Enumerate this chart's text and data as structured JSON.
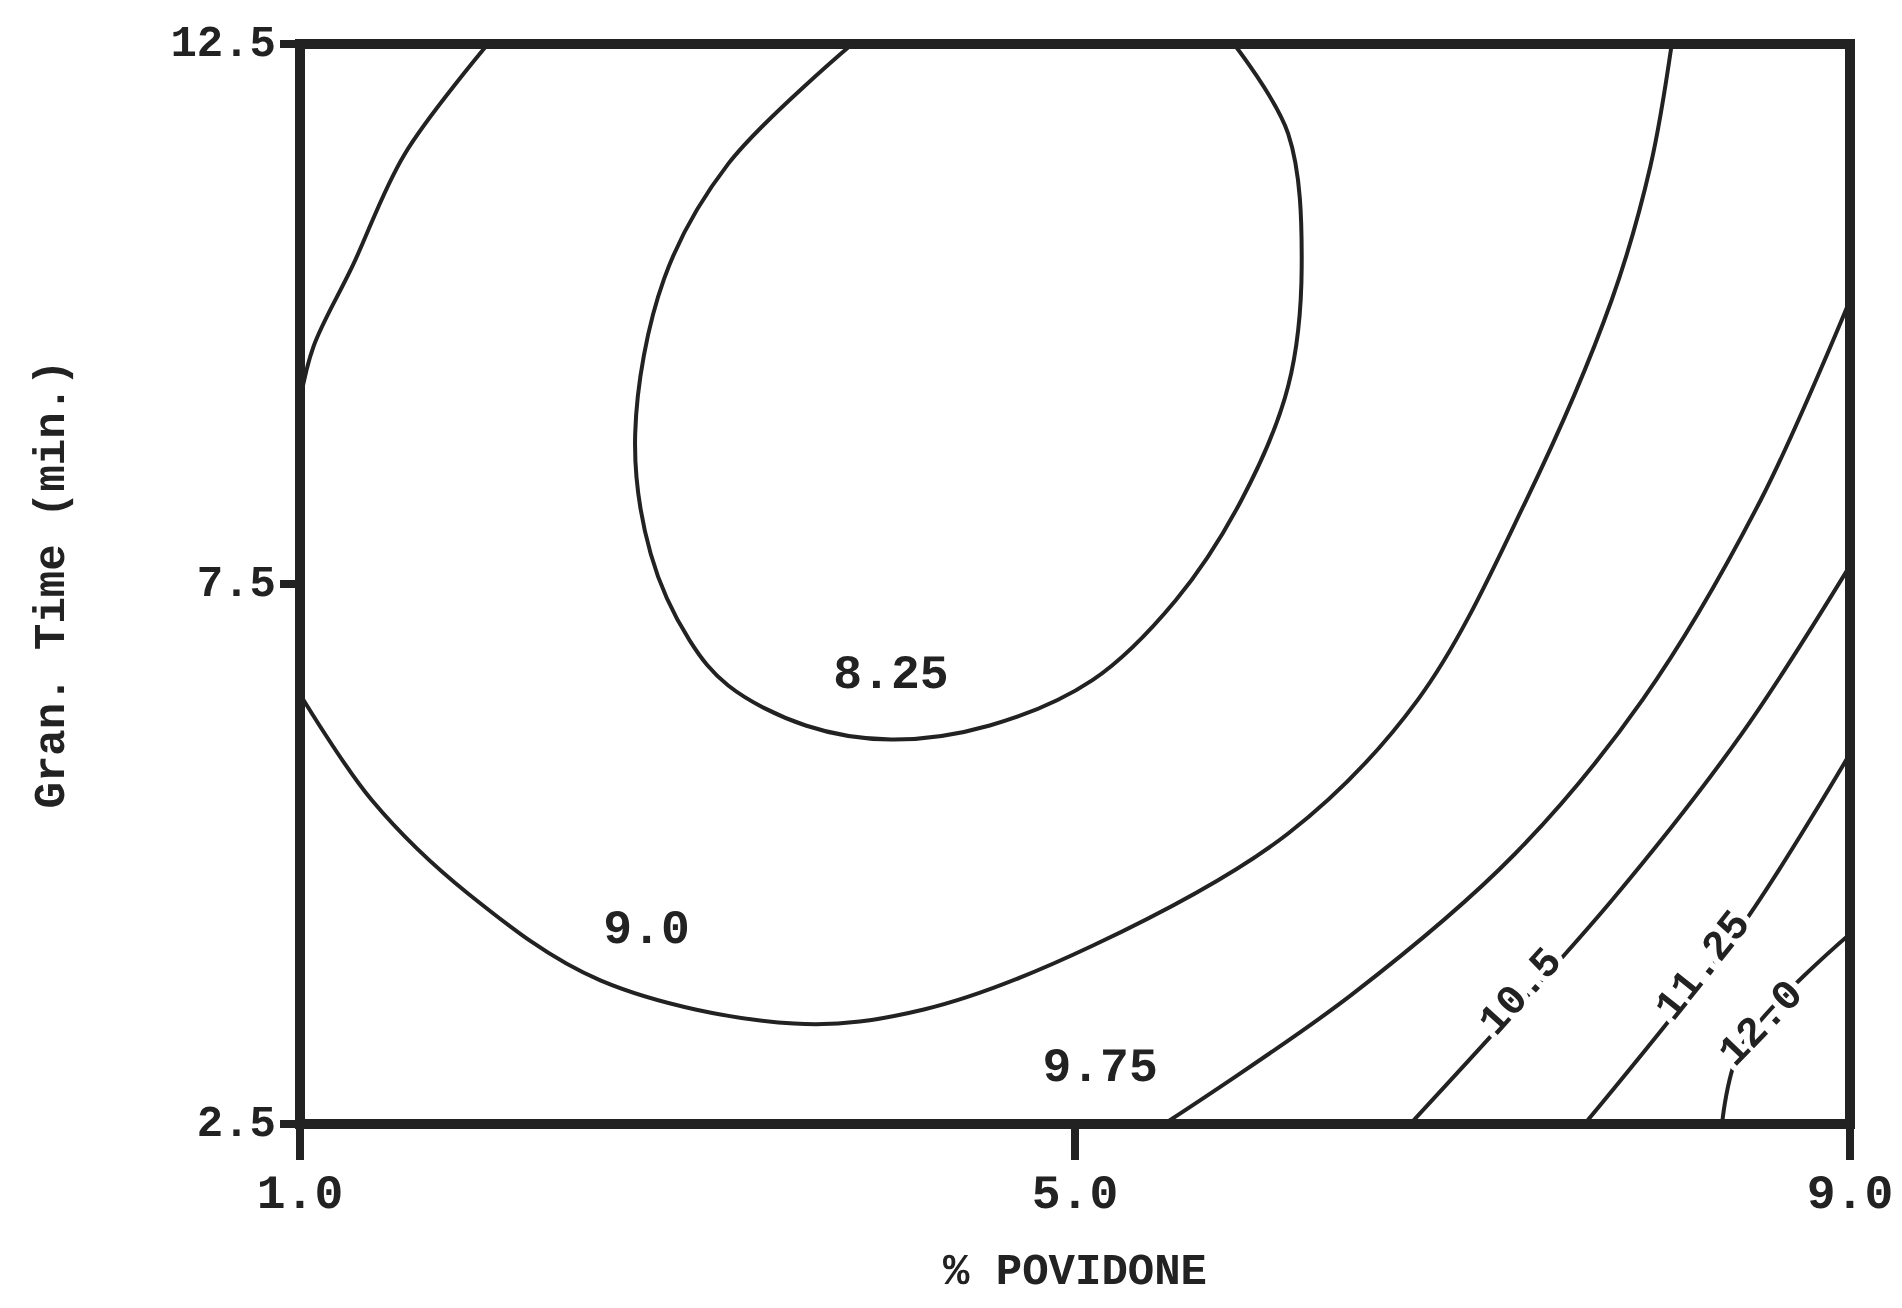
{
  "chart_data": {
    "type": "line",
    "xlabel": "% POVIDONE",
    "ylabel": "Gran. Time (min.)",
    "xlim": [
      1,
      9
    ],
    "ylim": [
      2.5,
      12.5
    ],
    "xticks": [
      {
        "value": 1,
        "label": "1.0"
      },
      {
        "value": 5,
        "label": "5.0"
      },
      {
        "value": 9,
        "label": "9.0"
      }
    ],
    "yticks": [
      2.5,
      7.5,
      12.5
    ],
    "grid": false,
    "legend": false,
    "marker": "none",
    "line_style": "solid",
    "series": [
      {
        "name": "8.25",
        "color": "#222222",
        "x": [
          3.85,
          3.21,
          2.88,
          2.73,
          2.81,
          3.01,
          3.21,
          3.61,
          4.05,
          4.56,
          5.09,
          5.52,
          5.86,
          6.1,
          6.17,
          6.1,
          5.82
        ],
        "values": [
          12.5,
          11.39,
          10.33,
          8.89,
          7.78,
          6.98,
          6.56,
          6.19,
          6.06,
          6.19,
          6.61,
          7.35,
          8.28,
          9.33,
          10.44,
          11.67,
          12.5
        ]
      },
      {
        "name": "9.0",
        "color": "#222222",
        "x": [
          1.97,
          1.54,
          1.27,
          1.07,
          1.0,
          null,
          1.0,
          1.37,
          1.87,
          2.55,
          3.55,
          4.22,
          5.09,
          6.1,
          6.77,
          7.33,
          7.77,
          7.97,
          8.08
        ],
        "values": [
          12.5,
          11.48,
          10.44,
          9.7,
          9.2,
          null,
          6.48,
          5.5,
          4.63,
          3.83,
          3.43,
          3.56,
          4.15,
          5.19,
          6.43,
          8.28,
          10.13,
          11.37,
          12.5
        ]
      },
      {
        "name": "9.75",
        "color": "#222222",
        "x": [
          5.46,
          6.43,
          7.27,
          7.93,
          8.54,
          9.0
        ],
        "values": [
          2.5,
          3.7,
          5.0,
          6.43,
          8.28,
          10.13
        ]
      },
      {
        "name": "10.5",
        "color": "#222222",
        "x": [
          6.73,
          7.77,
          8.44,
          9.0
        ],
        "values": [
          2.5,
          4.57,
          6.11,
          7.67
        ]
      },
      {
        "name": "11.25",
        "color": "#222222",
        "x": [
          7.63,
          8.44,
          9.0
        ],
        "values": [
          2.5,
          4.33,
          5.93
        ]
      },
      {
        "name": "12.0",
        "color": "#222222",
        "x": [
          8.34,
          8.44,
          9.0
        ],
        "values": [
          2.5,
          3.22,
          4.26
        ]
      }
    ]
  }
}
